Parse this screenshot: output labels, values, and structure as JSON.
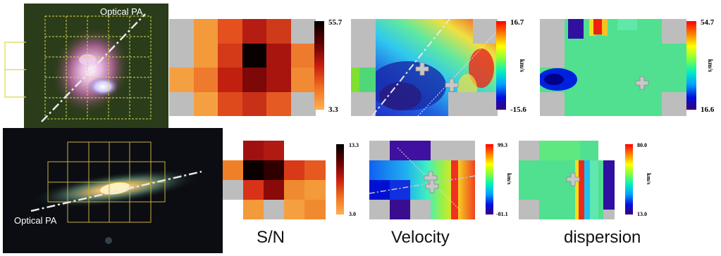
{
  "galaxy1": {
    "optical_pa_label": "Optical PA",
    "sn": {
      "max": "55.7",
      "min": "3.3"
    },
    "velocity": {
      "max": "16.7",
      "min": "-15.6",
      "unit": "km/s"
    },
    "dispersion": {
      "max": "54.7",
      "min": "16.6",
      "unit": "km/s"
    }
  },
  "galaxy2": {
    "optical_pa_label": "Optical PA",
    "sn": {
      "max": "13.3",
      "min": "3.0"
    },
    "velocity": {
      "max": "99.3",
      "min": "-81.1",
      "unit": "km/s"
    },
    "dispersion": {
      "max": "80.0",
      "min": "13.0",
      "unit": "km/s"
    }
  },
  "column_labels": {
    "sn": "S/N",
    "velocity": "Velocity",
    "dispersion": "dispersion"
  },
  "colors": {
    "grid_line": "#d8d84a",
    "pa_line": "#e8e8e8",
    "masked": "#bdbdbd"
  }
}
